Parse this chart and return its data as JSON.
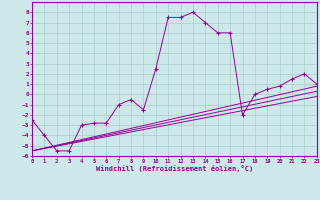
{
  "xlabel": "Windchill (Refroidissement éolien,°C)",
  "bg_color": "#cce8e8",
  "line_color": "#990099",
  "grid_color": "#aacccc",
  "xmin": 0,
  "xmax": 23,
  "ymin": -6,
  "ymax": 9,
  "main_x": [
    0,
    1,
    2,
    3,
    4,
    5,
    6,
    7,
    8,
    9,
    10,
    11,
    12,
    13,
    14,
    15,
    16,
    17,
    18,
    19,
    20,
    21,
    22,
    23
  ],
  "main_y": [
    -2.5,
    -4,
    -5.5,
    -5.5,
    -3,
    -2.8,
    -2.8,
    -1.0,
    -0.5,
    -1.5,
    2.5,
    7.5,
    7.5,
    8,
    7,
    6,
    6,
    -2,
    0,
    0.5,
    0.8,
    1.5,
    2,
    1
  ],
  "line2_x": [
    0,
    23
  ],
  "line2_y": [
    -5.5,
    0.8
  ],
  "line3_x": [
    0,
    23
  ],
  "line3_y": [
    -5.5,
    0.3
  ],
  "line4_x": [
    0,
    23
  ],
  "line4_y": [
    -5.5,
    -0.2
  ],
  "xticks": [
    0,
    1,
    2,
    3,
    4,
    5,
    6,
    7,
    8,
    9,
    10,
    11,
    12,
    13,
    14,
    15,
    16,
    17,
    18,
    19,
    20,
    21,
    22,
    23
  ],
  "yticks": [
    -6,
    -5,
    -4,
    -3,
    -2,
    -1,
    0,
    1,
    2,
    3,
    4,
    5,
    6,
    7,
    8
  ]
}
